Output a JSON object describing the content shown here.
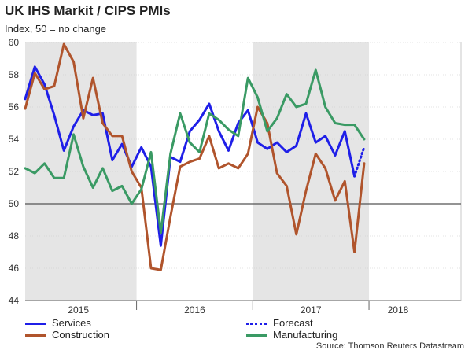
{
  "title": "UK IHS Markit / CIPS PMIs",
  "subtitle": "Index, 50 = no change",
  "source": "Source: Thomson Reuters Datastream",
  "chart_data": {
    "type": "line",
    "ylim": [
      44,
      60
    ],
    "yticks": [
      44,
      46,
      48,
      50,
      52,
      54,
      56,
      58,
      60
    ],
    "reference_line": 50,
    "x_range": [
      0,
      45
    ],
    "year_labels": [
      {
        "label": "2015",
        "x": 5.5
      },
      {
        "label": "2016",
        "x": 17.5
      },
      {
        "label": "2017",
        "x": 29.5
      },
      {
        "label": "2018",
        "x": 38.5
      }
    ],
    "year_boundaries": [
      11.5,
      23.5,
      35.5
    ],
    "shaded_ranges": [
      [
        0,
        11.5
      ],
      [
        23.5,
        35.5
      ]
    ],
    "colors": {
      "Services": "#1f1fe8",
      "Construction": "#b0542c",
      "Manufacturing": "#3a9a64",
      "Forecast": "#1f1fe8",
      "shade": "#e5e5e5",
      "grid": "#c8c8c8",
      "reference": "#555555"
    },
    "series": [
      {
        "name": "Services",
        "x_start": 0,
        "values": [
          56.5,
          58.5,
          57.4,
          55.5,
          53.3,
          54.8,
          55.8,
          55.5,
          55.6,
          52.7,
          53.7,
          52.3,
          53.5,
          52.3,
          47.4,
          52.9,
          52.6,
          54.5,
          55.2,
          56.2,
          54.5,
          53.3,
          55.0,
          55.8,
          53.8,
          53.4,
          53.8,
          53.2,
          53.6,
          55.6,
          53.8,
          54.2,
          53.0,
          54.5,
          51.7
        ]
      },
      {
        "name": "Construction",
        "x_start": 0,
        "values": [
          55.9,
          58.1,
          57.1,
          57.3,
          59.9,
          58.8,
          55.3,
          57.8,
          55.0,
          54.2,
          54.2,
          52.0,
          51.0,
          46.0,
          45.9,
          49.2,
          52.3,
          52.6,
          52.8,
          54.2,
          52.2,
          52.5,
          52.2,
          53.1,
          56.0,
          55.0,
          51.9,
          51.1,
          48.1,
          50.8,
          53.1,
          52.2,
          50.2,
          51.4,
          47.0,
          52.5
        ]
      },
      {
        "name": "Manufacturing",
        "x_start": 0,
        "values": [
          52.2,
          51.9,
          52.5,
          51.6,
          51.6,
          54.3,
          52.3,
          51.0,
          52.2,
          50.8,
          51.1,
          50.0,
          50.9,
          53.2,
          48.2,
          53.1,
          55.6,
          53.8,
          53.2,
          55.6,
          55.2,
          54.6,
          54.2,
          57.8,
          56.6,
          54.5,
          55.3,
          56.8,
          56.0,
          56.2,
          58.3,
          56.0,
          55.0,
          54.9,
          54.9,
          54.0
        ]
      },
      {
        "name": "Forecast",
        "x_start": 34,
        "dashed": true,
        "values": [
          51.7,
          53.5
        ]
      }
    ],
    "legend": [
      {
        "label": "Services",
        "series": "Services"
      },
      {
        "label": "Forecast",
        "series": "Forecast"
      },
      {
        "label": "Construction",
        "series": "Construction"
      },
      {
        "label": "Manufacturing",
        "series": "Manufacturing"
      }
    ]
  }
}
